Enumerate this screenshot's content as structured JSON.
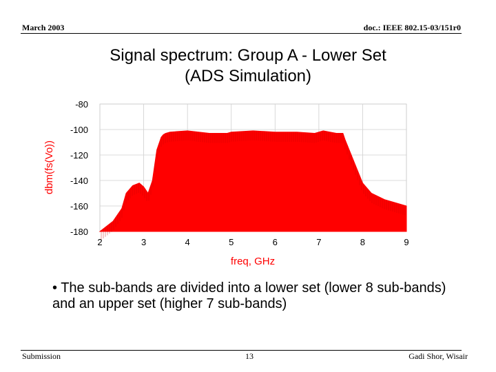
{
  "header": {
    "date": "March 2003",
    "doc": "doc.: IEEE 802.15-03/151r0"
  },
  "slide": {
    "title_line1": "Signal spectrum: Group A - Lower Set",
    "title_line2": "(ADS Simulation)",
    "bullet": "• The sub-bands are divided into a lower set (lower 8 sub-bands) and an upper set (higher 7 sub-bands)"
  },
  "footer": {
    "left": "Submission",
    "page": "13",
    "right": "Gadi Shor, Wisair"
  },
  "chart_data": {
    "type": "area",
    "xlabel": "freq, GHz",
    "ylabel": "dbm(fs(Vo))",
    "xlim": [
      2,
      9
    ],
    "ylim": [
      -180,
      -80
    ],
    "x_ticks": [
      "2",
      "3",
      "4",
      "5",
      "6",
      "7",
      "8",
      "9"
    ],
    "y_ticks": [
      "-80",
      "-100",
      "-120",
      "-140",
      "-160",
      "-180"
    ],
    "grid": true,
    "color": "#ff0000",
    "series": [
      {
        "x": [
          2.0,
          2.3,
          2.5,
          2.6,
          2.75,
          2.9,
          3.0,
          3.1,
          3.2,
          3.3,
          3.4,
          3.45,
          3.5,
          3.6,
          4.0,
          4.5,
          4.9,
          5.0,
          5.5,
          6.0,
          6.5,
          6.9,
          7.0,
          7.1,
          7.4,
          7.55,
          7.6,
          7.8,
          8.0,
          8.2,
          8.5,
          9.0
        ],
        "y": [
          -180,
          -172,
          -162,
          -150,
          -144,
          -142,
          -145,
          -150,
          -140,
          -116,
          -106,
          -104,
          -103,
          -102,
          -101,
          -103,
          -103,
          -102,
          -101,
          -102,
          -102,
          -103,
          -102,
          -101,
          -103,
          -103,
          -108,
          -125,
          -142,
          -150,
          -155,
          -160
        ]
      }
    ]
  }
}
